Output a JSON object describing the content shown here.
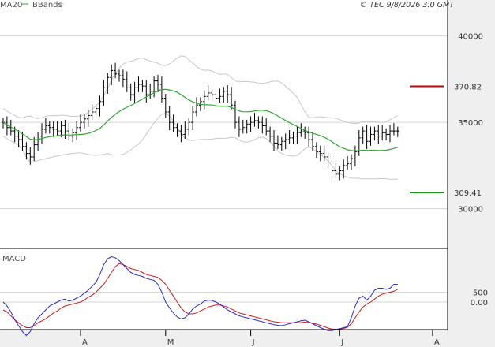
{
  "header": {
    "indicator1": "MA20",
    "indicator2": "BBands",
    "timestamp": "© TEC 9/8/2026 3:0 GMT"
  },
  "colors": {
    "price": "#000000",
    "ma": "#2eaa2e",
    "bbands": "#c8c8c8",
    "macd": "#2b2bd0",
    "signal": "#d11a1a",
    "resistance": "#cc0000",
    "support": "#109a10",
    "grid": "#d6d6d6",
    "panel_bg": "#efefef"
  },
  "chart_data": [
    {
      "type": "ohlc",
      "y_axis": {
        "ylim": [
          277,
          414
        ],
        "ticks": [
          300,
          350,
          400
        ],
        "tick_labels": [
          "30000",
          "35000",
          "40000"
        ]
      },
      "x_axis": {
        "range": [
          0,
          120
        ],
        "ticks": [
          {
            "label": "A",
            "x": 20
          },
          {
            "label": "M",
            "x": 42
          },
          {
            "label": "J",
            "x": 64
          },
          {
            "label": "J",
            "x": 87
          },
          {
            "label": "A",
            "x": 111
          }
        ]
      },
      "close": [
        350,
        347,
        345,
        342,
        340,
        336,
        332,
        330,
        337,
        342,
        346,
        348,
        347,
        346,
        345,
        348,
        345,
        342,
        344,
        347,
        350,
        352,
        354,
        356,
        358,
        362,
        370,
        376,
        380,
        378,
        377,
        375,
        370,
        366,
        370,
        372,
        371,
        366,
        368,
        374,
        372,
        364,
        356,
        350,
        347,
        345,
        343,
        346,
        350,
        356,
        360,
        362,
        365,
        367,
        366,
        364,
        365,
        368,
        366,
        360,
        350,
        346,
        347,
        349,
        350,
        351,
        350,
        348,
        345,
        342,
        338,
        337,
        339,
        340,
        341,
        342,
        344,
        345,
        344,
        340,
        336,
        333,
        332,
        330,
        327,
        322,
        320,
        322,
        325,
        326,
        329,
        333,
        341,
        345,
        339,
        343,
        345,
        342,
        344,
        343,
        345,
        345,
        345
      ],
      "resistance": {
        "value": 370.82,
        "label": "370.82"
      },
      "support": {
        "value": 309.41,
        "label": "309.41"
      }
    },
    {
      "type": "line",
      "title": "MACD",
      "y_axis": {
        "ylim": [
          -1400,
          2600
        ],
        "ticks": [
          500,
          0
        ],
        "tick_labels": [
          "500",
          "0.00"
        ]
      },
      "series": [
        {
          "key": "macd"
        },
        {
          "key": "signal"
        }
      ],
      "macd_values": [
        0,
        -200,
        -500,
        -900,
        -1200,
        -1500,
        -1700,
        -1500,
        -1100,
        -800,
        -600,
        -400,
        -200,
        -100,
        0,
        100,
        150,
        50,
        100,
        200,
        300,
        450,
        600,
        800,
        1000,
        1400,
        1900,
        2200,
        2300,
        2250,
        2100,
        1900,
        1700,
        1500,
        1400,
        1350,
        1300,
        1200,
        1150,
        1100,
        900,
        500,
        0,
        -300,
        -550,
        -750,
        -850,
        -800,
        -600,
        -350,
        -200,
        -100,
        50,
        100,
        80,
        0,
        -100,
        -250,
        -400,
        -500,
        -600,
        -700,
        -750,
        -800,
        -850,
        -900,
        -950,
        -1000,
        -1050,
        -1100,
        -1150,
        -1180,
        -1200,
        -1150,
        -1100,
        -1050,
        -1000,
        -950,
        -920,
        -1000,
        -1100,
        -1200,
        -1300,
        -1380,
        -1450,
        -1450,
        -1400,
        -1350,
        -1300,
        -1250,
        -800,
        -200,
        200,
        300,
        100,
        300,
        600,
        700,
        700,
        650,
        700,
        900,
        900
      ],
      "signal_values": [
        -400,
        -500,
        -700,
        -900,
        -1050,
        -1200,
        -1300,
        -1300,
        -1200,
        -1050,
        -950,
        -850,
        -700,
        -550,
        -450,
        -300,
        -200,
        -150,
        -100,
        -50,
        0,
        100,
        250,
        350,
        500,
        700,
        900,
        1200,
        1500,
        1800,
        1950,
        1900,
        1800,
        1700,
        1650,
        1600,
        1500,
        1400,
        1350,
        1300,
        1250,
        1100,
        900,
        600,
        300,
        0,
        -300,
        -500,
        -600,
        -600,
        -550,
        -450,
        -350,
        -250,
        -200,
        -150,
        -150,
        -200,
        -250,
        -350,
        -450,
        -550,
        -600,
        -650,
        -700,
        -750,
        -800,
        -850,
        -900,
        -950,
        -1000,
        -1020,
        -1050,
        -1050,
        -1050,
        -1050,
        -1050,
        -1040,
        -1020,
        -1040,
        -1080,
        -1120,
        -1180,
        -1250,
        -1320,
        -1370,
        -1380,
        -1370,
        -1340,
        -1280,
        -1100,
        -800,
        -500,
        -250,
        -100,
        0,
        150,
        300,
        400,
        450,
        500,
        550,
        650
      ]
    }
  ]
}
